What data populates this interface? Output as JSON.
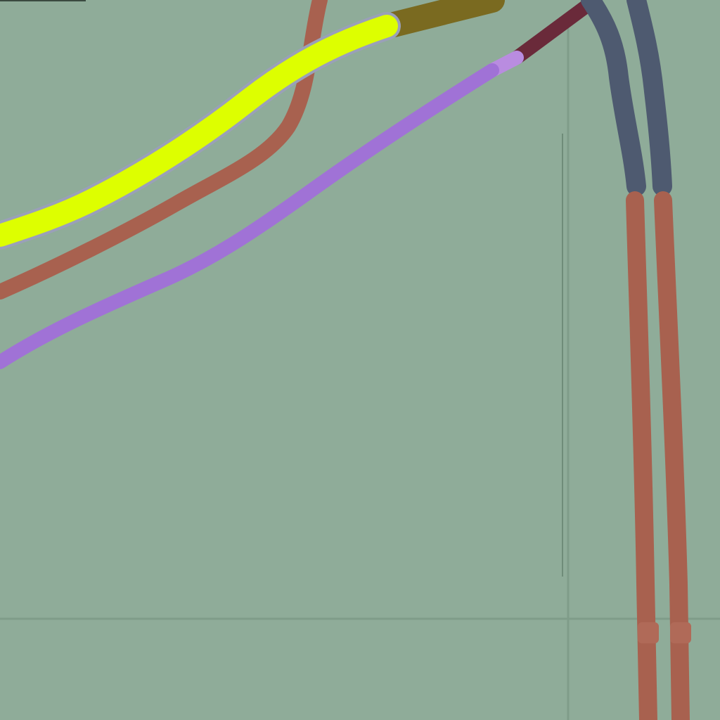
{
  "colors": {
    "background": "#8fac99",
    "grid_line": "#7f9c89",
    "wire_yellow": "#ddff00",
    "wire_yellow_dark": "#7a6a20",
    "wire_red": "#a8614f",
    "wire_purple": "#a072d6",
    "wire_purple_light": "#b98ce0",
    "wire_maroon": "#6a2a3a",
    "wire_slate": "#4e5a70"
  },
  "wires": [
    {
      "name": "wire-yellow",
      "color_key": "wire_yellow",
      "icon": "wire"
    },
    {
      "name": "wire-red-upper",
      "color_key": "wire_red",
      "icon": "wire"
    },
    {
      "name": "wire-purple",
      "color_key": "wire_purple",
      "icon": "wire"
    },
    {
      "name": "wire-maroon-end",
      "color_key": "wire_maroon",
      "icon": "wire"
    },
    {
      "name": "wire-slate-left",
      "color_key": "wire_slate",
      "icon": "wire"
    },
    {
      "name": "wire-slate-right",
      "color_key": "wire_slate",
      "icon": "wire"
    },
    {
      "name": "wire-red-left",
      "color_key": "wire_red",
      "icon": "wire"
    },
    {
      "name": "wire-red-right",
      "color_key": "wire_red",
      "icon": "wire"
    }
  ]
}
